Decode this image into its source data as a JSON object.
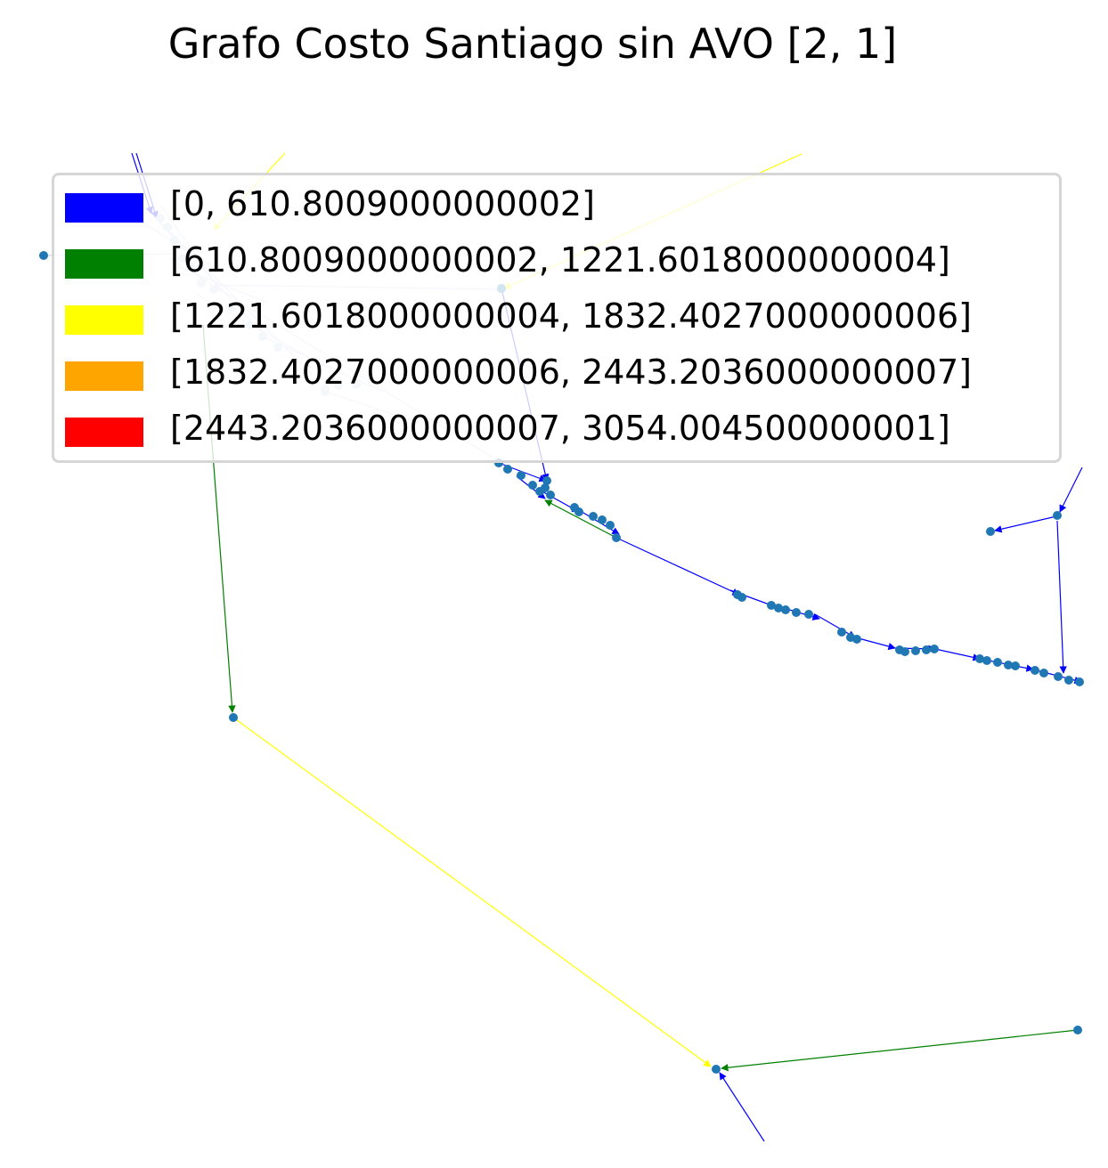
{
  "title": "Grafo Costo Santiago sin AVO [2, 1]",
  "legend": {
    "entries": [
      {
        "label": "[0, 610.8009000000002]",
        "color": "#0000ff"
      },
      {
        "label": "[610.8009000000002, 1221.6018000000004]",
        "color": "#008000"
      },
      {
        "label": "[1221.6018000000004, 1832.4027000000006]",
        "color": "#ffff00"
      },
      {
        "label": "[1832.4027000000006, 2443.2036000000007]",
        "color": "#ffa500"
      },
      {
        "label": "[2443.2036000000007, 3054.004500000001]",
        "color": "#ff0000"
      }
    ]
  },
  "node_color": "#1f77b4"
}
